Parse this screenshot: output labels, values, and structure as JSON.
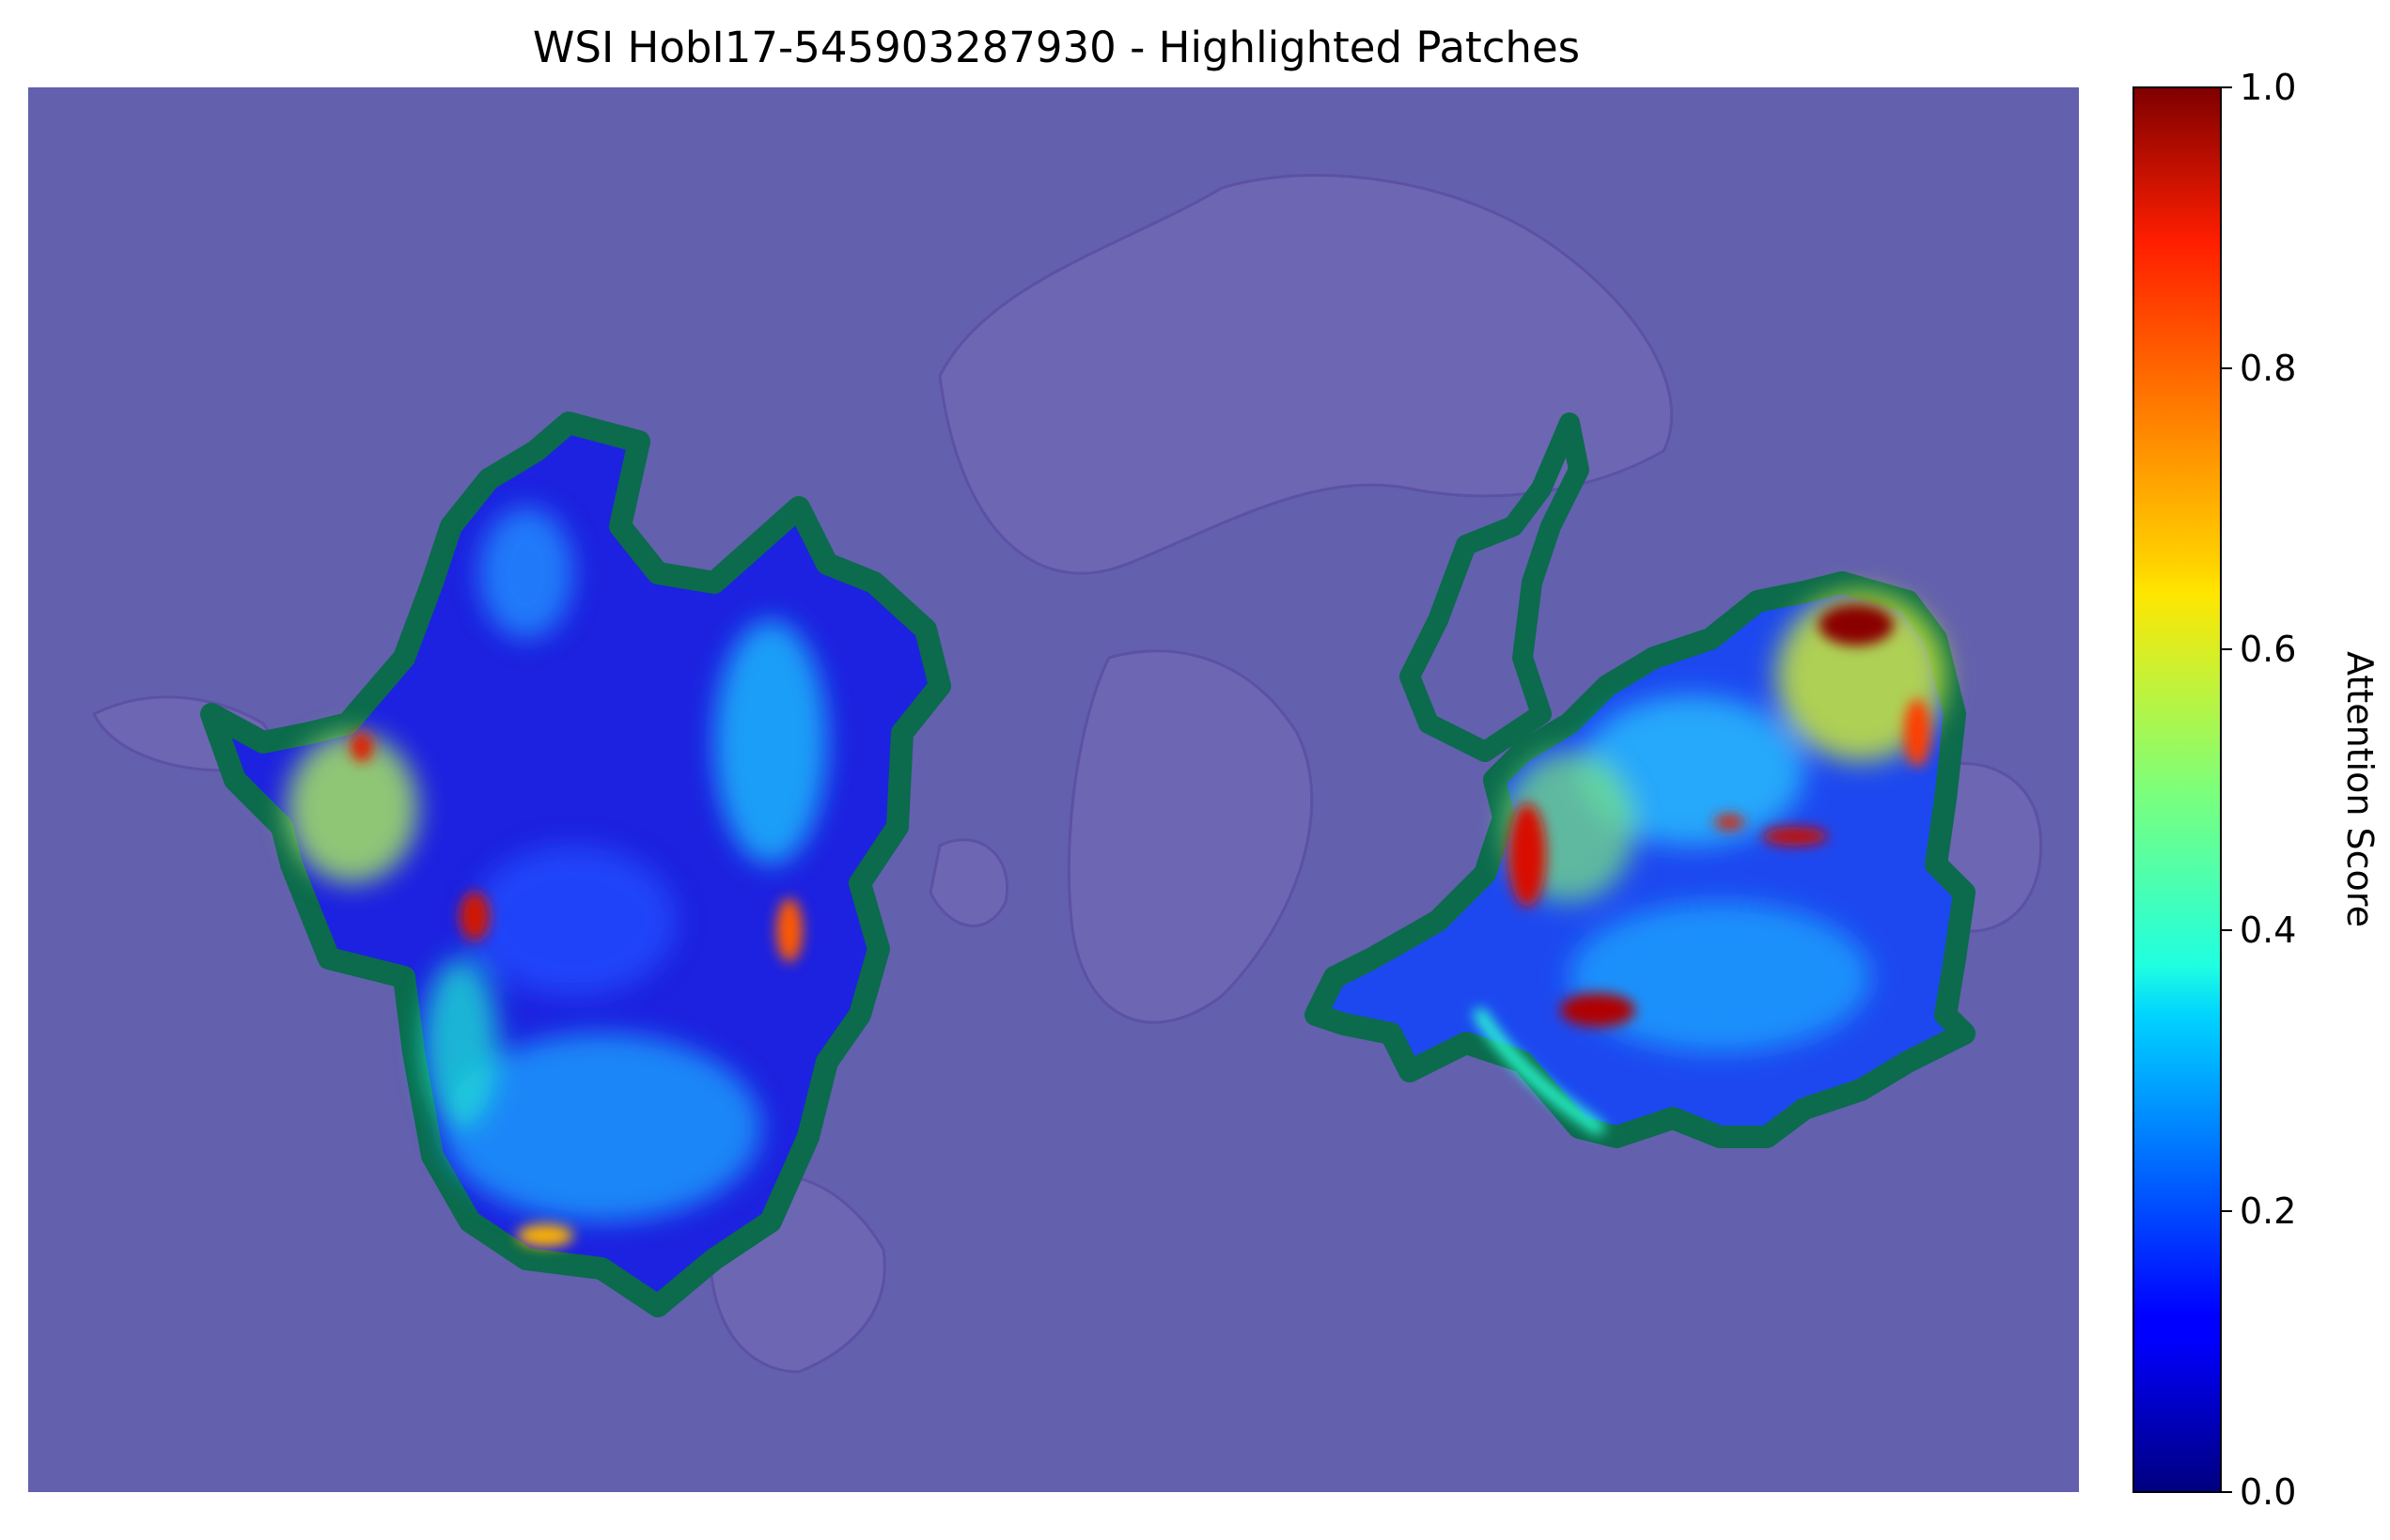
{
  "chart_data": {
    "type": "heatmap",
    "title": "WSI HobI17-545903287930 - Highlighted Patches",
    "xlabel": "",
    "ylabel": "",
    "axes_visible": false,
    "background_tissue_color": "#6360ae",
    "contour_color": "#0b6b4c",
    "colormap": "jet",
    "colorbar": {
      "label": "Attention Score",
      "range": [
        0.0,
        1.0
      ],
      "ticks": [
        0.0,
        0.2,
        0.4,
        0.6,
        0.8,
        1.0
      ],
      "tick_labels": [
        "0.0",
        "0.2",
        "0.4",
        "0.6",
        "0.8",
        "1.0"
      ],
      "placement": "right"
    },
    "regions": [
      {
        "name": "left tissue region",
        "dominant_score_range": [
          0.15,
          0.45
        ],
        "max_score": 0.95
      },
      {
        "name": "right tissue region",
        "dominant_score_range": [
          0.2,
          0.6
        ],
        "max_score": 1.0
      }
    ]
  }
}
